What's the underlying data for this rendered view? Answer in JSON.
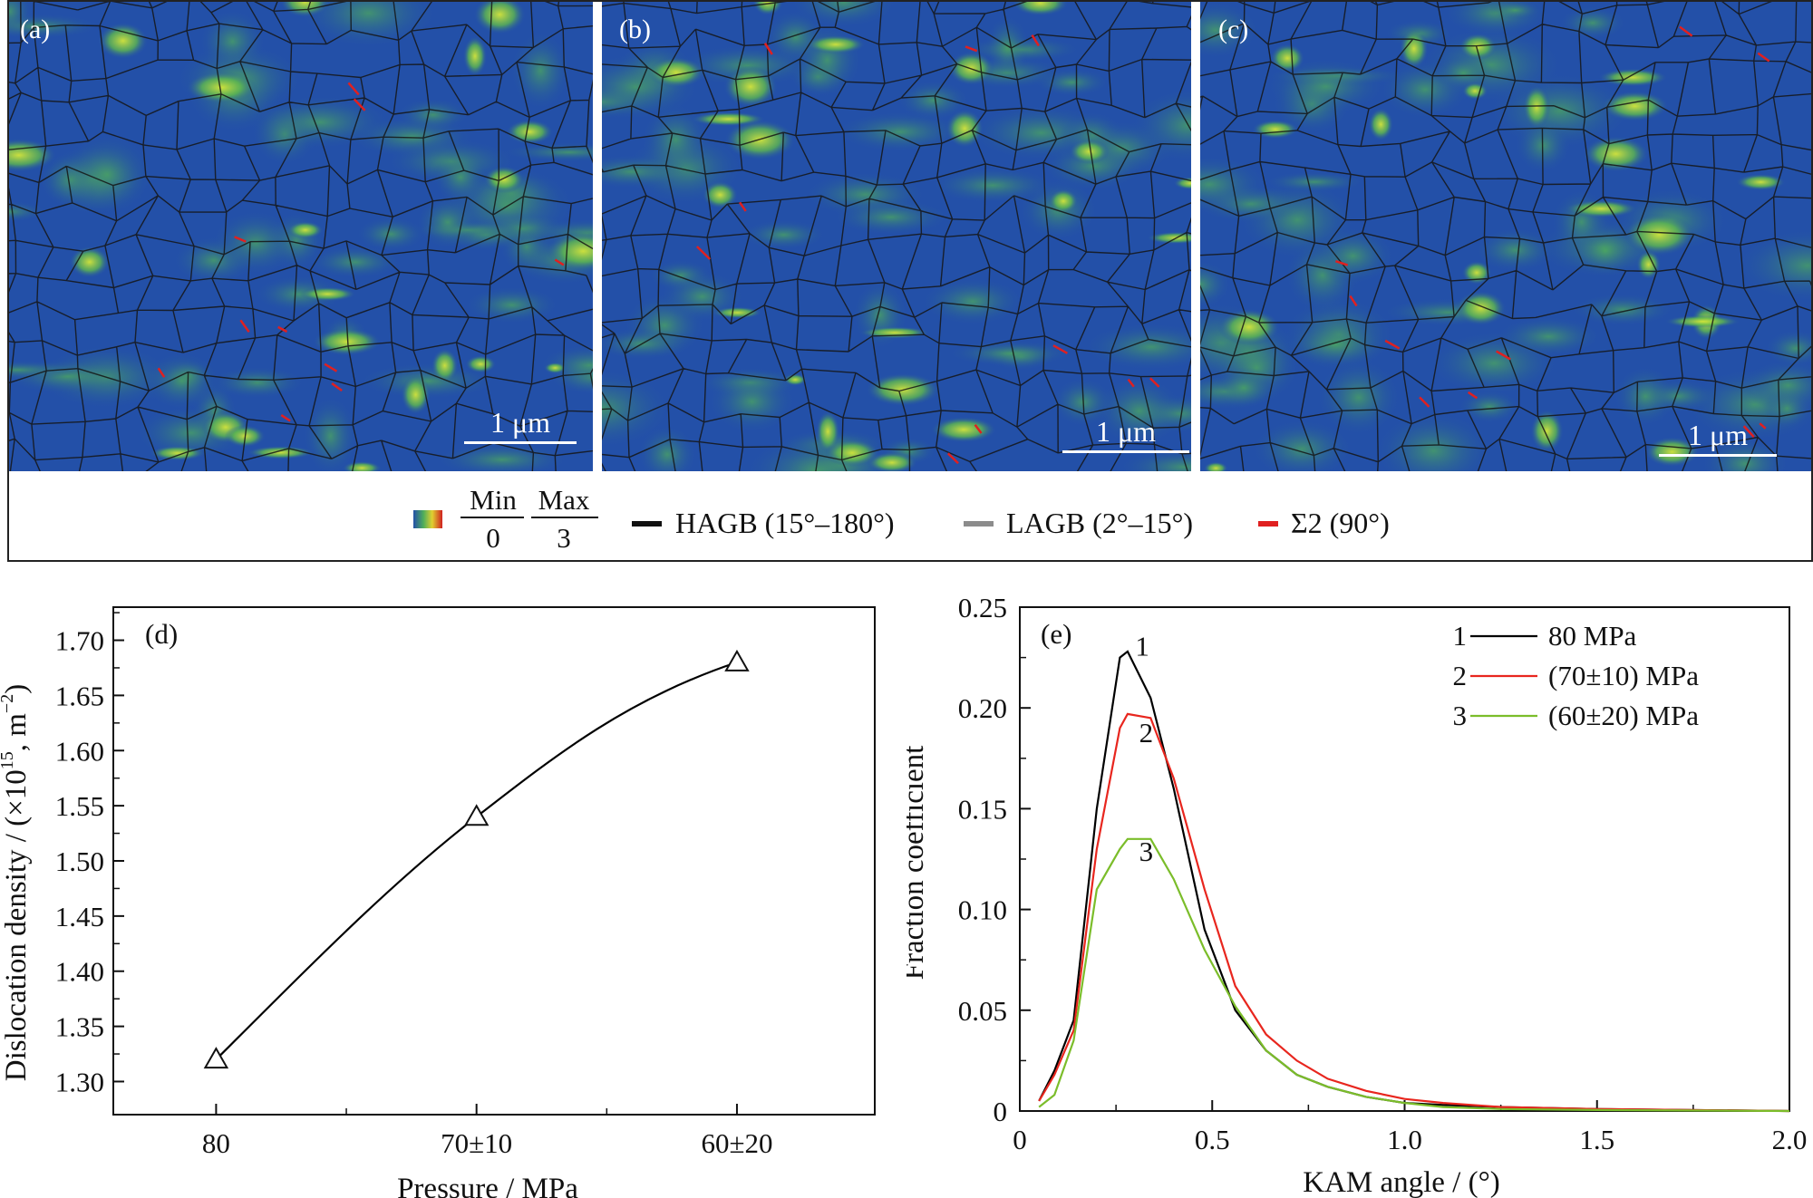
{
  "maps": {
    "panels": [
      {
        "label": "(a)",
        "scale": "1 μm"
      },
      {
        "label": "(b)",
        "scale": "1 μm"
      },
      {
        "label": "(c)",
        "scale": "1 μm"
      }
    ],
    "legend": {
      "min_label": "Min",
      "min_value": "0",
      "max_label": "Max",
      "max_value": "3",
      "items": [
        {
          "label": "HAGB (15°–180°)",
          "color": "#111111"
        },
        {
          "label": "LAGB (2°–15°)",
          "color": "#8c8c8c"
        },
        {
          "label": "Σ2 (90°)",
          "color": "#e02020"
        }
      ]
    },
    "colors": {
      "base": "#2350a8",
      "patch": "#4fae5a",
      "hot": "#c8e030",
      "boundary": "#151515"
    }
  },
  "chart_data": [
    {
      "panel": "(d)",
      "type": "line",
      "categories": [
        "80",
        "70±10",
        "60±20"
      ],
      "series": [
        {
          "values": [
            1.32,
            1.54,
            1.68
          ],
          "marker": "triangle-open",
          "color": "#000000"
        }
      ],
      "xlabel": "Pressure / MPa",
      "ylabel": "Dislocation density / (×10",
      "ylabel_sup": "15",
      "ylabel_tail": ", m",
      "ylabel_sup2": "−2",
      "ylabel_end": ")",
      "ylim": [
        1.27,
        1.73
      ],
      "yticks": [
        "1.30",
        "1.35",
        "1.40",
        "1.45",
        "1.50",
        "1.55",
        "1.60",
        "1.65",
        "1.70"
      ]
    },
    {
      "panel": "(e)",
      "type": "line",
      "x": [
        0.05,
        0.09,
        0.14,
        0.2,
        0.26,
        0.28,
        0.34,
        0.4,
        0.48,
        0.56,
        0.64,
        0.72,
        0.8,
        0.9,
        1.0,
        1.1,
        1.25,
        1.5,
        2.0
      ],
      "series": [
        {
          "name": "80 MPa",
          "id": "1",
          "color": "#000000",
          "values": [
            0.005,
            0.02,
            0.045,
            0.15,
            0.225,
            0.228,
            0.205,
            0.16,
            0.09,
            0.05,
            0.03,
            0.018,
            0.012,
            0.007,
            0.004,
            0.003,
            0.002,
            0.001,
            0.0
          ]
        },
        {
          "name": "(70±10) MPa",
          "id": "2",
          "color": "#e8261e",
          "values": [
            0.005,
            0.018,
            0.04,
            0.13,
            0.19,
            0.197,
            0.195,
            0.165,
            0.11,
            0.062,
            0.038,
            0.025,
            0.016,
            0.01,
            0.006,
            0.004,
            0.002,
            0.001,
            0.0
          ]
        },
        {
          "name": "(60±20) MPa",
          "id": "3",
          "color": "#7bbd2a",
          "values": [
            0.002,
            0.008,
            0.035,
            0.11,
            0.13,
            0.135,
            0.135,
            0.115,
            0.08,
            0.052,
            0.03,
            0.018,
            0.012,
            0.007,
            0.004,
            0.002,
            0.001,
            0.0005,
            0.0
          ]
        }
      ],
      "xlabel": "KAM angle / (°)",
      "ylabel": "Fraction coefficient",
      "xlim": [
        0,
        2.0
      ],
      "ylim": [
        0,
        0.25
      ],
      "xticks": [
        "0",
        "0.5",
        "1.0",
        "1.5",
        "2.0"
      ],
      "yticks": [
        "0",
        "0.05",
        "0.10",
        "0.15",
        "0.20",
        "0.25"
      ]
    }
  ]
}
